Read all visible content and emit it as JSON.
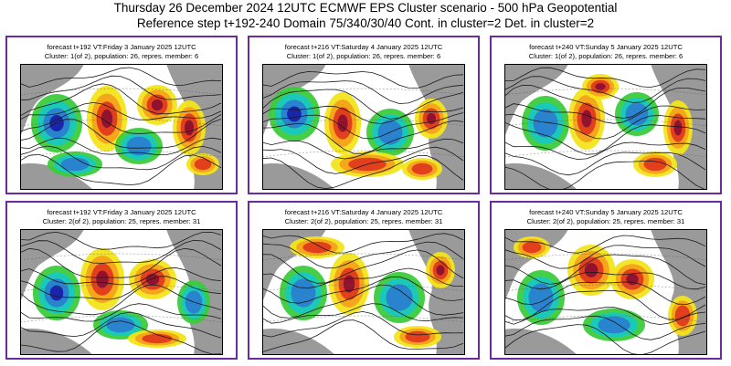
{
  "header": {
    "line1": "Thursday 26 December 2024 12UTC ECMWF EPS Cluster scenario - 500 hPa Geopotential",
    "line2": "Reference step t+192-240 Domain 75/340/30/40 Cont. in cluster=2 Det. in cluster=2"
  },
  "panels": [
    {
      "forecast": "forecast t+192 VT:Friday 3 January 2025 12UTC",
      "cluster": "Cluster: 1(of 2), population: 26, repres. member: 6"
    },
    {
      "forecast": "forecast t+216 VT:Saturday 4 January 2025 12UTC",
      "cluster": "Cluster: 1(of 2), population: 26, repres. member: 6"
    },
    {
      "forecast": "forecast t+240 VT:Sunday 5 January 2025 12UTC",
      "cluster": "Cluster: 1(of 2), population: 26, repres. member: 6"
    },
    {
      "forecast": "forecast t+192 VT:Friday 3 January 2025 12UTC",
      "cluster": "Cluster: 2(of 2), population: 25, repres. member: 31"
    },
    {
      "forecast": "forecast t+216 VT:Saturday 4 January 2025 12UTC",
      "cluster": "Cluster: 2(of 2), population: 25, repres. member: 31"
    },
    {
      "forecast": "forecast t+240 VT:Sunday 5 January 2025 12UTC",
      "cluster": "Cluster: 2(of 2), population: 25, repres. member: 31"
    }
  ],
  "colors": {
    "frame": "#6a2c9a",
    "land": "#9a9a9a",
    "strong_positive": "#8b1030",
    "positive": "#e03a1e",
    "weak_positive": "#f4a21a",
    "slight_positive": "#f2e41c",
    "slight_negative": "#3ccc3c",
    "weak_negative": "#19c8c0",
    "negative": "#2a7fd0",
    "strong_negative": "#1820a8"
  }
}
